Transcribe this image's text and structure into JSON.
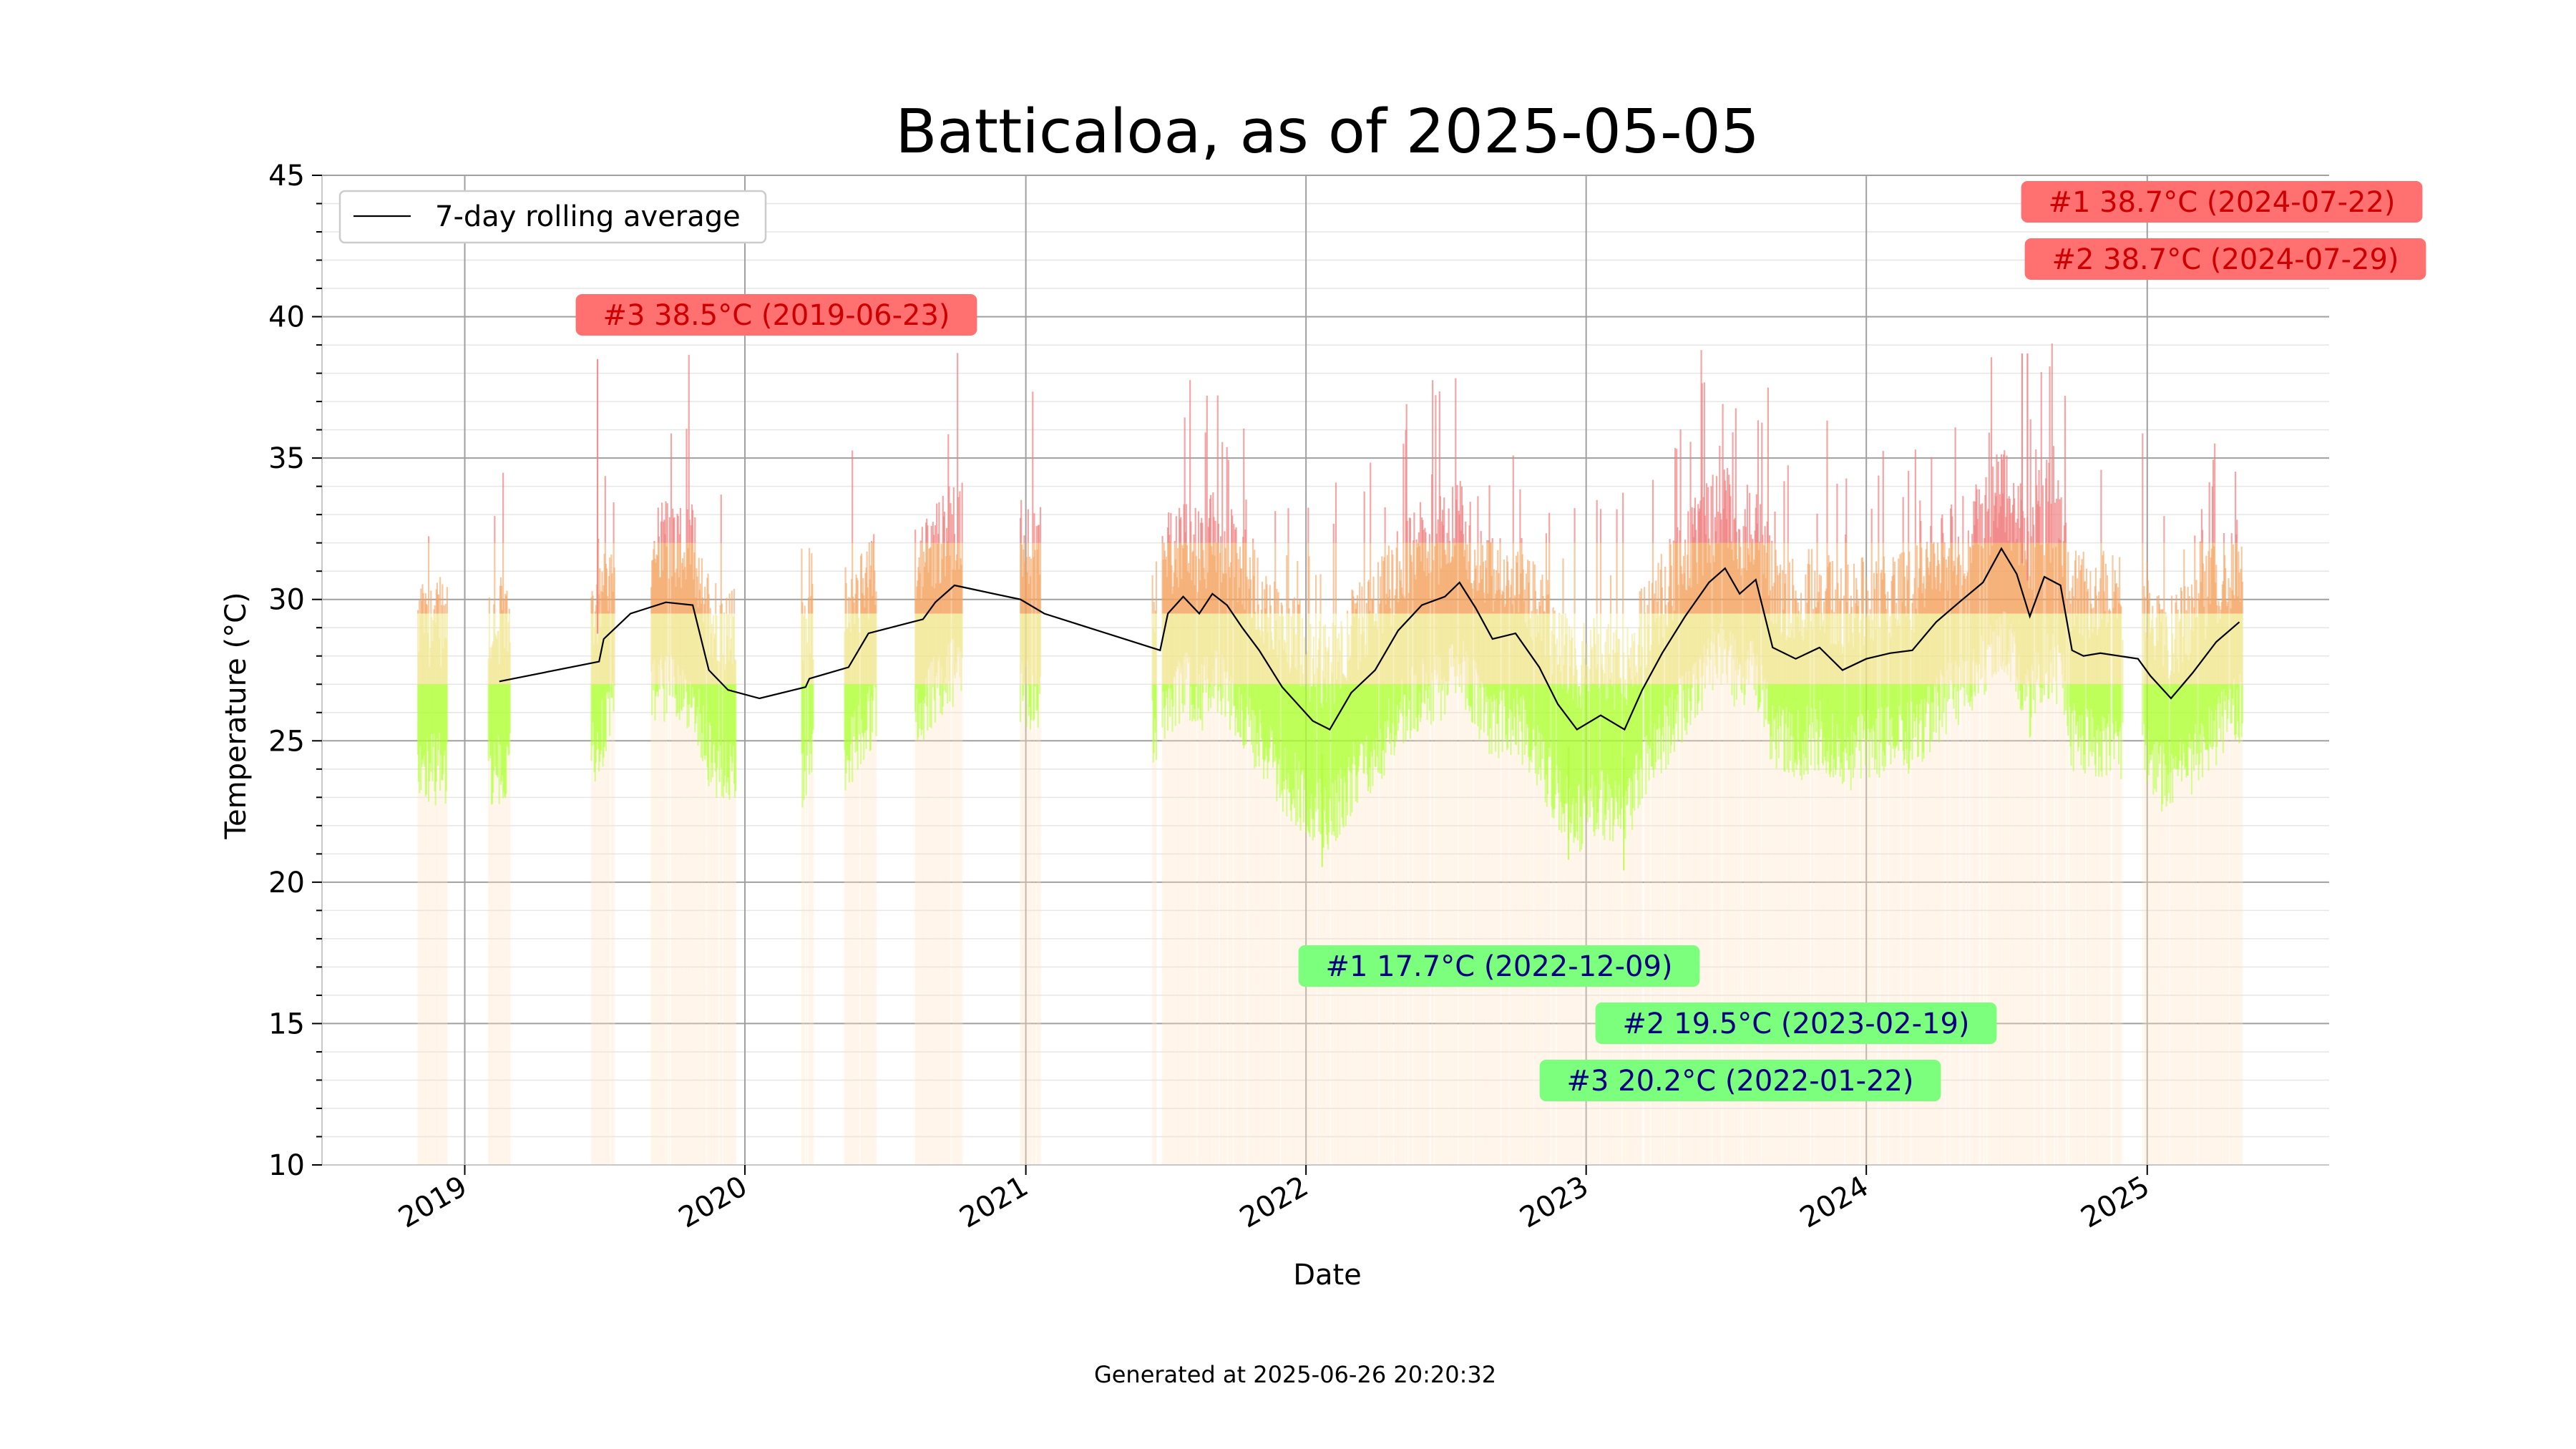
{
  "chart_data": {
    "type": "bar",
    "title": "Batticaloa, as of 2025-05-05",
    "xlabel": "Date",
    "ylabel": "Temperature (°C)",
    "ylim": [
      10,
      45
    ],
    "xlim": [
      "2018-06-29",
      "2025-08-26"
    ],
    "yticks": [
      10,
      15,
      20,
      25,
      30,
      35,
      40,
      45
    ],
    "xticks": [
      {
        "date": "2019-01-01",
        "label": "2019"
      },
      {
        "date": "2020-01-01",
        "label": "2020"
      },
      {
        "date": "2021-01-01",
        "label": "2021"
      },
      {
        "date": "2022-01-01",
        "label": "2022"
      },
      {
        "date": "2023-01-01",
        "label": "2023"
      },
      {
        "date": "2024-01-01",
        "label": "2024"
      },
      {
        "date": "2025-01-01",
        "label": "2025"
      }
    ],
    "grid": true,
    "legend": {
      "position": "top-left",
      "entries": [
        "7-day rolling average"
      ]
    },
    "footer": "Generated at 2025-06-26 20:20:32",
    "colors": {
      "hot": "#f08080",
      "warm": "#f4a460",
      "mild": "#f0e68c",
      "cool": "#adff2f",
      "line": "#000000",
      "max_box": "#ff7070",
      "min_box": "#7cff7c"
    },
    "extremes": {
      "max": [
        {
          "label": "#1 38.7°C (2024-07-22)",
          "date": "2024-07-22",
          "value": 38.7
        },
        {
          "label": "#2 38.7°C (2024-07-29)",
          "date": "2024-07-29",
          "value": 38.7
        },
        {
          "label": "#3 38.5°C (2019-06-23)",
          "date": "2019-06-23",
          "value": 38.5
        }
      ],
      "min": [
        {
          "label": "#1 17.7°C (2022-12-09)",
          "date": "2022-12-09",
          "value": 17.7
        },
        {
          "label": "#2 19.5°C (2023-02-19)",
          "date": "2023-02-19",
          "value": 19.5
        },
        {
          "label": "#3 20.2°C (2022-01-22)",
          "date": "2022-01-22",
          "value": 20.2
        }
      ]
    },
    "rolling_average": [
      [
        "2019-02-15",
        27.1
      ],
      [
        "2019-06-25",
        27.8
      ],
      [
        "2019-07-01",
        28.6
      ],
      [
        "2019-08-05",
        29.5
      ],
      [
        "2019-09-20",
        29.9
      ],
      [
        "2019-10-25",
        29.8
      ],
      [
        "2019-11-15",
        27.5
      ],
      [
        "2019-12-10",
        26.8
      ],
      [
        "2020-01-20",
        26.5
      ],
      [
        "2020-03-20",
        26.9
      ],
      [
        "2020-03-25",
        27.2
      ],
      [
        "2020-05-15",
        27.6
      ],
      [
        "2020-06-10",
        28.8
      ],
      [
        "2020-08-20",
        29.3
      ],
      [
        "2020-09-05",
        29.9
      ],
      [
        "2020-09-30",
        30.5
      ],
      [
        "2020-12-25",
        30.0
      ],
      [
        "2021-01-25",
        29.5
      ],
      [
        "2021-06-25",
        28.2
      ],
      [
        "2021-07-05",
        29.5
      ],
      [
        "2021-07-25",
        30.1
      ],
      [
        "2021-08-15",
        29.5
      ],
      [
        "2021-09-01",
        30.2
      ],
      [
        "2021-09-20",
        29.8
      ],
      [
        "2021-10-10",
        29.0
      ],
      [
        "2021-11-01",
        28.2
      ],
      [
        "2021-12-01",
        26.9
      ],
      [
        "2022-01-10",
        25.7
      ],
      [
        "2022-02-01",
        25.4
      ],
      [
        "2022-03-01",
        26.7
      ],
      [
        "2022-04-01",
        27.5
      ],
      [
        "2022-05-01",
        28.9
      ],
      [
        "2022-06-01",
        29.8
      ],
      [
        "2022-07-01",
        30.1
      ],
      [
        "2022-07-20",
        30.6
      ],
      [
        "2022-08-10",
        29.7
      ],
      [
        "2022-09-01",
        28.6
      ],
      [
        "2022-10-01",
        28.8
      ],
      [
        "2022-11-01",
        27.6
      ],
      [
        "2022-11-25",
        26.3
      ],
      [
        "2022-12-20",
        25.4
      ],
      [
        "2023-01-20",
        25.9
      ],
      [
        "2023-02-20",
        25.4
      ],
      [
        "2023-03-15",
        26.8
      ],
      [
        "2023-04-10",
        28.1
      ],
      [
        "2023-05-10",
        29.4
      ],
      [
        "2023-06-10",
        30.6
      ],
      [
        "2023-07-01",
        31.1
      ],
      [
        "2023-07-20",
        30.2
      ],
      [
        "2023-08-10",
        30.7
      ],
      [
        "2023-09-01",
        28.3
      ],
      [
        "2023-10-01",
        27.9
      ],
      [
        "2023-11-01",
        28.3
      ],
      [
        "2023-12-01",
        27.5
      ],
      [
        "2024-01-01",
        27.9
      ],
      [
        "2024-02-01",
        28.1
      ],
      [
        "2024-03-01",
        28.2
      ],
      [
        "2024-04-01",
        29.2
      ],
      [
        "2024-05-01",
        29.9
      ],
      [
        "2024-06-01",
        30.6
      ],
      [
        "2024-06-25",
        31.8
      ],
      [
        "2024-07-15",
        30.9
      ],
      [
        "2024-08-01",
        29.4
      ],
      [
        "2024-08-20",
        30.8
      ],
      [
        "2024-09-10",
        30.5
      ],
      [
        "2024-09-25",
        28.2
      ],
      [
        "2024-10-10",
        28.0
      ],
      [
        "2024-11-01",
        28.1
      ],
      [
        "2024-12-20",
        27.9
      ],
      [
        "2025-01-05",
        27.3
      ],
      [
        "2025-02-01",
        26.5
      ],
      [
        "2025-03-01",
        27.4
      ],
      [
        "2025-04-01",
        28.5
      ],
      [
        "2025-05-01",
        29.2
      ]
    ],
    "data_periods": [
      [
        "2018-11-01",
        "2018-12-10"
      ],
      [
        "2019-02-01",
        "2019-03-01"
      ],
      [
        "2019-06-15",
        "2019-07-15"
      ],
      [
        "2019-09-01",
        "2019-12-20"
      ],
      [
        "2020-03-15",
        "2020-03-30"
      ],
      [
        "2020-05-10",
        "2020-06-20"
      ],
      [
        "2020-08-10",
        "2020-10-10"
      ],
      [
        "2020-12-25",
        "2021-01-20"
      ],
      [
        "2021-06-15",
        "2021-06-20"
      ],
      [
        "2021-06-28",
        "2025-05-05"
      ]
    ],
    "gaps": [
      [
        "2024-12-01",
        "2024-12-25"
      ]
    ]
  }
}
